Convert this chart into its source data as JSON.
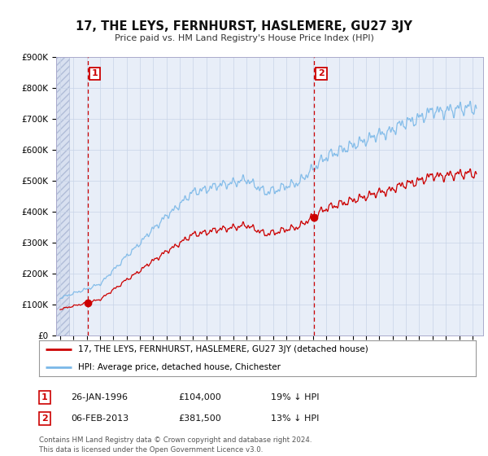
{
  "title": "17, THE LEYS, FERNHURST, HASLEMERE, GU27 3JY",
  "subtitle": "Price paid vs. HM Land Registry's House Price Index (HPI)",
  "ylim": [
    0,
    900000
  ],
  "yticks": [
    0,
    100000,
    200000,
    300000,
    400000,
    500000,
    600000,
    700000,
    800000,
    900000
  ],
  "ytick_labels": [
    "£0",
    "£100K",
    "£200K",
    "£300K",
    "£400K",
    "£500K",
    "£600K",
    "£700K",
    "£800K",
    "£900K"
  ],
  "sale1_date": 1996.07,
  "sale1_price": 104000,
  "sale2_date": 2013.1,
  "sale2_price": 381500,
  "hpi_line_color": "#7ab8e8",
  "price_line_color": "#cc0000",
  "vline_color": "#cc0000",
  "legend_label1": "17, THE LEYS, FERNHURST, HASLEMERE, GU27 3JY (detached house)",
  "legend_label2": "HPI: Average price, detached house, Chichester",
  "note1_num": "1",
  "note1_date": "26-JAN-1996",
  "note1_price": "£104,000",
  "note1_hpi": "19% ↓ HPI",
  "note2_num": "2",
  "note2_date": "06-FEB-2013",
  "note2_price": "£381,500",
  "note2_hpi": "13% ↓ HPI",
  "footnote": "Contains HM Land Registry data © Crown copyright and database right 2024.\nThis data is licensed under the Open Government Licence v3.0.",
  "plot_bg_color": "#e8eef8",
  "hatch_bg_color": "#d0d8e8",
  "grid_color": "#c8d4e8"
}
